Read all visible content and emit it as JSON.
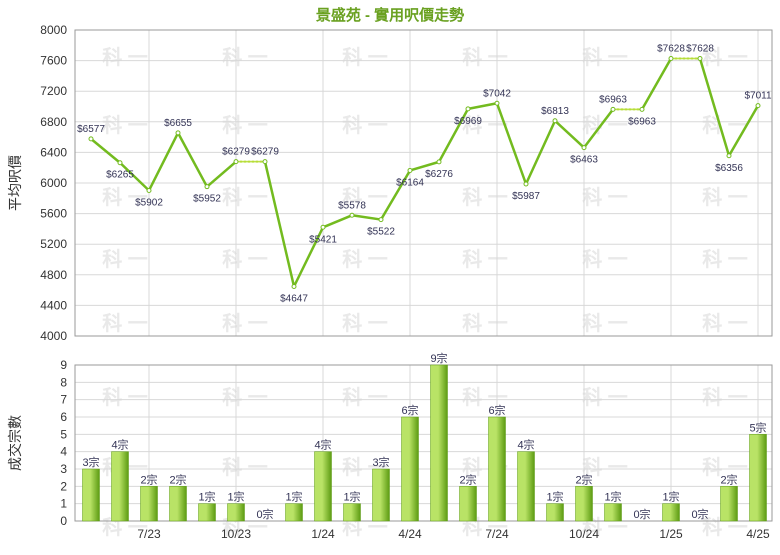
{
  "title": "景盛苑 - 實用呎價走勢",
  "watermark": "科 一",
  "colors": {
    "line": "#73bb1f",
    "dotted": "#b6dd36",
    "point": "#ffffff",
    "bar_light": "#b9e366",
    "bar_dark": "#5c9b12",
    "grid": "#d8d8d8",
    "frame": "#9a9a9a"
  },
  "chart_data": [
    {
      "type": "line",
      "title": "景盛苑 - 實用呎價走勢",
      "ylabel": "平均呎價",
      "ylim": [
        4000,
        8000
      ],
      "yticks": [
        4000,
        4400,
        4800,
        5200,
        5600,
        6000,
        6400,
        6800,
        7200,
        7600,
        8000
      ],
      "grid": true,
      "points": [
        {
          "x": 0,
          "y": 6577,
          "label": "$6577"
        },
        {
          "x": 1,
          "y": 6265,
          "label": "$6265"
        },
        {
          "x": 2,
          "y": 5902,
          "label": "$5902"
        },
        {
          "x": 3,
          "y": 6655,
          "label": "$6655"
        },
        {
          "x": 4,
          "y": 5952,
          "label": "$5952"
        },
        {
          "x": 5,
          "y": 6279,
          "label": "$6279"
        },
        {
          "x": 6,
          "y": 6279,
          "label": "$6279"
        },
        {
          "x": 7,
          "y": 4647,
          "label": "$4647"
        },
        {
          "x": 8,
          "y": 5421,
          "label": "$5421"
        },
        {
          "x": 9,
          "y": 5578,
          "label": "$5578"
        },
        {
          "x": 10,
          "y": 5522,
          "label": "$5522"
        },
        {
          "x": 11,
          "y": 6164,
          "label": "$6164"
        },
        {
          "x": 12,
          "y": 6276,
          "label": "$6276"
        },
        {
          "x": 13,
          "y": 6969,
          "label": "$6969"
        },
        {
          "x": 14,
          "y": 7042,
          "label": "$7042"
        },
        {
          "x": 15,
          "y": 5987,
          "label": "$5987"
        },
        {
          "x": 16,
          "y": 6813,
          "label": "$6813"
        },
        {
          "x": 17,
          "y": 6463,
          "label": "$6463"
        },
        {
          "x": 18,
          "y": 6963,
          "label": "$6963"
        },
        {
          "x": 19,
          "y": 6963,
          "label": "$6963"
        },
        {
          "x": 20,
          "y": 7628,
          "label": "$7628"
        },
        {
          "x": 21,
          "y": 7628,
          "label": "$7628"
        },
        {
          "x": 22,
          "y": 6356,
          "label": "$6356"
        },
        {
          "x": 23,
          "y": 7011,
          "label": "$7011"
        }
      ]
    },
    {
      "type": "bar",
      "ylabel": "成交宗數",
      "ylim": [
        0,
        9
      ],
      "yticks": [
        0,
        1,
        2,
        3,
        4,
        5,
        6,
        7,
        8,
        9
      ],
      "grid": true,
      "values": [
        3,
        4,
        2,
        2,
        1,
        1,
        0,
        1,
        4,
        1,
        3,
        6,
        9,
        2,
        6,
        4,
        1,
        2,
        1,
        0,
        1,
        0,
        2,
        5
      ],
      "labels": [
        "3宗",
        "4宗",
        "2宗",
        "2宗",
        "1宗",
        "1宗",
        "0宗",
        "1宗",
        "4宗",
        "1宗",
        "3宗",
        "6宗",
        "9宗",
        "2宗",
        "6宗",
        "4宗",
        "1宗",
        "2宗",
        "1宗",
        "0宗",
        "1宗",
        "0宗",
        "2宗",
        "5宗"
      ],
      "xtick_labels": [
        {
          "index": 2,
          "label": "7/23"
        },
        {
          "index": 5,
          "label": "10/23"
        },
        {
          "index": 8,
          "label": "1/24"
        },
        {
          "index": 11,
          "label": "4/24"
        },
        {
          "index": 14,
          "label": "7/24"
        },
        {
          "index": 17,
          "label": "10/24"
        },
        {
          "index": 20,
          "label": "1/25"
        },
        {
          "index": 23,
          "label": "4/25"
        }
      ]
    }
  ]
}
